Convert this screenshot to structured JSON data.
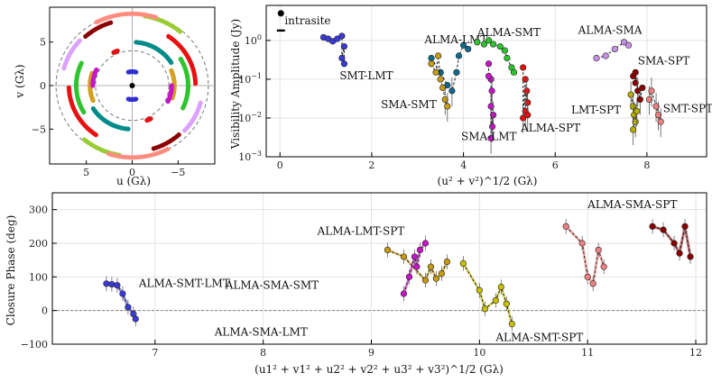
{
  "chart_data": [
    {
      "type": "scatter",
      "title": "",
      "xlabel": "u (Gλ)",
      "ylabel": "v (Gλ)",
      "xlim": [
        9,
        -9
      ],
      "ylim": [
        -9,
        9
      ],
      "xticks": [
        5,
        0,
        -5
      ],
      "yticks": [
        5,
        0,
        -5
      ],
      "circles_radius": [
        4,
        8.3
      ],
      "center_point": [
        0,
        0
      ],
      "tracks": [
        {
          "color": "#9acd32",
          "r": 8.1,
          "a0": 100,
          "a1": 130
        },
        {
          "color": "#9acd32",
          "r": 8.1,
          "a0": 280,
          "a1": 310
        },
        {
          "color": "#ff8c7f",
          "r": 8.25,
          "a0": 62,
          "a1": 108
        },
        {
          "color": "#ff8c7f",
          "r": 8.25,
          "a0": 242,
          "a1": 288
        },
        {
          "color": "#dda0ff",
          "r": 7.7,
          "a0": 15,
          "a1": 42
        },
        {
          "color": "#dda0ff",
          "r": 7.7,
          "a0": 195,
          "a1": 222
        },
        {
          "color": "#e81010",
          "r": 6.9,
          "a0": 125,
          "a1": 178
        },
        {
          "color": "#e81010",
          "r": 6.9,
          "a0": 305,
          "a1": 358
        },
        {
          "color": "#8b0000",
          "r": 7.6,
          "a0": 228,
          "a1": 252
        },
        {
          "color": "#8b0000",
          "r": 7.6,
          "a0": 48,
          "a1": 72
        },
        {
          "color": "#2ec42e",
          "r": 6.1,
          "a0": 150,
          "a1": 205
        },
        {
          "color": "#2ec42e",
          "r": 6.1,
          "a0": 330,
          "a1": 25
        },
        {
          "color": "#008b8b",
          "r": 5.0,
          "a0": 95,
          "a1": 148
        },
        {
          "color": "#008b8b",
          "r": 5.0,
          "a0": 275,
          "a1": 328
        },
        {
          "color": "#d4a020",
          "r": 4.6,
          "a0": 158,
          "a1": 198
        },
        {
          "color": "#d4a020",
          "r": 4.6,
          "a0": 338,
          "a1": 18
        },
        {
          "color": "#c814c8",
          "r": 4.3,
          "a0": 0,
          "a1": 25
        },
        {
          "color": "#c814c8",
          "r": 4.3,
          "a0": 180,
          "a1": 205
        },
        {
          "color": "#3030d0",
          "r": 1.6,
          "a0": 75,
          "a1": 105
        },
        {
          "color": "#3030d0",
          "r": 1.6,
          "a0": 255,
          "a1": 285
        },
        {
          "color": "#e81010",
          "r": 4.3,
          "a0": 62,
          "a1": 68
        },
        {
          "color": "#e81010",
          "r": 4.3,
          "a0": 242,
          "a1": 248
        }
      ]
    },
    {
      "type": "scatter",
      "title": "",
      "xlabel": "(u² + v²)^1/2 (Gλ)",
      "ylabel": "Visibility Amplitude (Jy)",
      "yscale": "log",
      "xlim": [
        -0.3,
        9.3
      ],
      "ylim": [
        0.001,
        8
      ],
      "xticks": [
        0,
        2,
        4,
        6,
        8
      ],
      "yticks": [
        0.001,
        0.01,
        0.1,
        1
      ],
      "ytick_labels": [
        "10^-3",
        "10^-2",
        "10^-1",
        "10^0"
      ],
      "baselines": [
        {
          "name": "intrasite",
          "color": "#000000",
          "label_xy": [
            0.1,
            2.6
          ],
          "points": [
            [
              0.02,
              5.0
            ],
            [
              0.01,
              1.8
            ]
          ]
        },
        {
          "name": "SMT-LMT",
          "color": "#3a3ad8",
          "label_xy": [
            1.3,
            0.1
          ],
          "points": [
            [
              0.95,
              1.2
            ],
            [
              1.05,
              1.1
            ],
            [
              1.15,
              0.95
            ],
            [
              1.25,
              1.1
            ],
            [
              1.35,
              1.3
            ],
            [
              1.4,
              0.7
            ],
            [
              1.35,
              0.35
            ],
            [
              1.4,
              0.25
            ]
          ]
        },
        {
          "name": "ALMA-LMT",
          "color": "#0e6a8c",
          "label_xy": [
            3.15,
            0.85
          ],
          "points": [
            [
              3.3,
              0.35
            ],
            [
              3.5,
              0.15
            ],
            [
              3.65,
              0.07
            ],
            [
              3.75,
              0.05
            ],
            [
              3.85,
              0.15
            ],
            [
              3.9,
              0.4
            ],
            [
              4.0,
              0.75
            ],
            [
              4.1,
              0.6
            ]
          ]
        },
        {
          "name": "ALMA-SMT",
          "color": "#2ec42e",
          "label_xy": [
            4.3,
            1.3
          ],
          "points": [
            [
              4.3,
              0.9
            ],
            [
              4.45,
              0.8
            ],
            [
              4.55,
              1.0
            ],
            [
              4.65,
              0.8
            ],
            [
              4.8,
              0.7
            ],
            [
              4.9,
              0.55
            ],
            [
              4.95,
              0.35
            ],
            [
              5.05,
              0.2
            ],
            [
              5.1,
              0.15
            ]
          ]
        },
        {
          "name": "SMA-SMT",
          "color": "#c89b10",
          "label_xy": [
            2.2,
            0.018
          ],
          "points": [
            [
              3.3,
              0.25
            ],
            [
              3.4,
              0.15
            ],
            [
              3.5,
              0.1
            ],
            [
              3.55,
              0.06
            ],
            [
              3.6,
              0.03
            ],
            [
              3.65,
              0.02
            ],
            [
              3.45,
              0.4
            ]
          ]
        },
        {
          "name": "SMA-LMT",
          "color": "#c814c8",
          "label_xy": [
            3.95,
            0.0027
          ],
          "points": [
            [
              4.55,
              0.25
            ],
            [
              4.6,
              0.1
            ],
            [
              4.62,
              0.05
            ],
            [
              4.6,
              0.02
            ],
            [
              4.65,
              0.012
            ],
            [
              4.63,
              0.006
            ],
            [
              4.6,
              0.003
            ],
            [
              4.55,
              0.12
            ]
          ]
        },
        {
          "name": "ALMA-SPT",
          "color": "#e81010",
          "label_xy": [
            5.25,
            0.0045
          ],
          "points": [
            [
              5.3,
              0.2
            ],
            [
              5.35,
              0.1
            ],
            [
              5.38,
              0.05
            ],
            [
              5.4,
              0.025
            ],
            [
              5.35,
              0.015
            ],
            [
              5.3,
              0.01
            ],
            [
              5.4,
              0.012
            ]
          ]
        },
        {
          "name": "ALMA-SMA",
          "color": "#c890e6",
          "label_xy": [
            6.5,
            1.5
          ],
          "points": [
            [
              6.9,
              0.35
            ],
            [
              7.1,
              0.4
            ],
            [
              7.3,
              0.6
            ],
            [
              7.5,
              0.9
            ],
            [
              7.6,
              0.75
            ]
          ]
        },
        {
          "name": "SMA-SPT",
          "color": "#8b0000",
          "label_xy": [
            7.8,
            0.24
          ],
          "points": [
            [
              7.7,
              0.12
            ],
            [
              7.75,
              0.08
            ],
            [
              7.8,
              0.05
            ],
            [
              7.85,
              0.03
            ],
            [
              7.9,
              0.06
            ],
            [
              7.75,
              0.15
            ]
          ]
        },
        {
          "name": "LMT-SPT",
          "color": "#b8b000",
          "label_xy": [
            6.35,
            0.013
          ],
          "points": [
            [
              7.65,
              0.04
            ],
            [
              7.7,
              0.02
            ],
            [
              7.72,
              0.012
            ],
            [
              7.75,
              0.008
            ],
            [
              7.7,
              0.005
            ],
            [
              7.78,
              0.015
            ]
          ]
        },
        {
          "name": "SMT-SPT",
          "color": "#f08080",
          "label_xy": [
            8.35,
            0.014
          ],
          "points": [
            [
              8.05,
              0.03
            ],
            [
              8.1,
              0.05
            ],
            [
              8.2,
              0.02
            ],
            [
              8.25,
              0.012
            ],
            [
              8.3,
              0.008
            ]
          ]
        }
      ]
    },
    {
      "type": "scatter",
      "title": "",
      "xlabel": "(u1² + v1² + u2² + v2² + u3² + v3²)^1/2 (Gλ)",
      "ylabel": "Closure Phase (deg)",
      "xlim": [
        6.05,
        12.1
      ],
      "ylim": [
        -100,
        350
      ],
      "xticks": [
        7,
        8,
        9,
        10,
        11,
        12
      ],
      "yticks": [
        -100,
        0,
        100,
        200,
        300
      ],
      "zero_line": 0,
      "triangles": [
        {
          "name": "ALMA-SMT-LMT",
          "color": "#3a3ad8",
          "label_xy": [
            6.85,
            70
          ],
          "points": [
            [
              6.55,
              80
            ],
            [
              6.6,
              78
            ],
            [
              6.65,
              75
            ],
            [
              6.7,
              50
            ],
            [
              6.75,
              10
            ],
            [
              6.8,
              -10
            ],
            [
              6.82,
              -25
            ]
          ]
        },
        {
          "name": "ALMA-LMT-SPT",
          "color": "#c8c000",
          "label_xy": [
            8.5,
            225
          ],
          "points": [
            [
              9.85,
              140
            ],
            [
              10.0,
              60
            ],
            [
              10.05,
              5
            ],
            [
              10.15,
              30
            ],
            [
              10.2,
              70
            ],
            [
              10.25,
              20
            ],
            [
              10.3,
              -40
            ]
          ]
        },
        {
          "name": "ALMA-SMA-SMT",
          "color": "#c89b10",
          "label_xy": [
            7.65,
            65
          ],
          "points": [
            [
              9.15,
              180
            ],
            [
              9.3,
              160
            ],
            [
              9.5,
              90
            ],
            [
              9.55,
              130
            ],
            [
              9.6,
              95
            ],
            [
              9.65,
              110
            ],
            [
              9.7,
              145
            ]
          ]
        },
        {
          "name": "ALMA-SMA-LMT",
          "color": "#c814c8",
          "label_xy": [
            7.55,
            -75
          ],
          "points": [
            [
              9.3,
              50
            ],
            [
              9.35,
              100
            ],
            [
              9.4,
              160
            ],
            [
              9.45,
              180
            ],
            [
              9.5,
              200
            ],
            [
              9.42,
              130
            ]
          ]
        },
        {
          "name": "ALMA-SMT-SPT",
          "color": "#f08080",
          "label_xy": [
            10.15,
            -90
          ],
          "points": [
            [
              10.8,
              250
            ],
            [
              10.95,
              200
            ],
            [
              11.0,
              100
            ],
            [
              11.05,
              80
            ],
            [
              11.1,
              180
            ],
            [
              11.15,
              130
            ]
          ]
        },
        {
          "name": "ALMA-SMA-SPT",
          "color": "#8b0000",
          "label_xy": [
            11.0,
            305
          ],
          "points": [
            [
              11.6,
              250
            ],
            [
              11.7,
              240
            ],
            [
              11.8,
              200
            ],
            [
              11.85,
              170
            ],
            [
              11.9,
              250
            ],
            [
              11.95,
              160
            ]
          ]
        }
      ]
    }
  ]
}
